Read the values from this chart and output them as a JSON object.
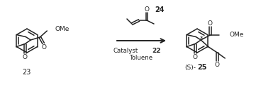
{
  "fig_width": 3.92,
  "fig_height": 1.24,
  "dpi": 100,
  "lw": 1.1,
  "lc": "#222222",
  "bg": "#f2f2f2",
  "labels": {
    "23": "23",
    "24": "24",
    "25": "25",
    "S25": "(S)-",
    "ome": "OMe",
    "O": "O",
    "catalyst": "Catalyst",
    "cat_num": "22",
    "solvent": "Toluene"
  }
}
